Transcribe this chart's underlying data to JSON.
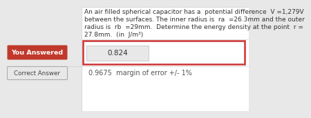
{
  "bg_color": "#e8e8e8",
  "panel_color": "#f7f7f7",
  "white_panel_color": "#ffffff",
  "question_text_lines": [
    "An air filled spherical capacitor has a  potential difference  V =1,279V",
    "between the surfaces. The inner radius is  ra  =26.3mm and the outer",
    "radius is  rb  =29mm.  Determine the energy density at the point  r =",
    "27.8mm.  (in  J/m³)"
  ],
  "you_answered_label": "You Answered",
  "you_answered_bg": "#c0392b",
  "you_answered_value": "0.824",
  "correct_answer_label": "Correct Answer",
  "correct_answer_value": "0.9675  margin of error +/- 1%",
  "answer_box_border_color": "#cc3333",
  "answer_box_fill": "#ffffff",
  "input_box_fill": "#e8e8e8",
  "input_box_border": "#cccccc",
  "text_color": "#333333",
  "correct_text_color": "#555555",
  "font_size_question": 6.5,
  "font_size_label": 6.8,
  "font_size_value": 7.5,
  "font_size_correct": 7.5
}
